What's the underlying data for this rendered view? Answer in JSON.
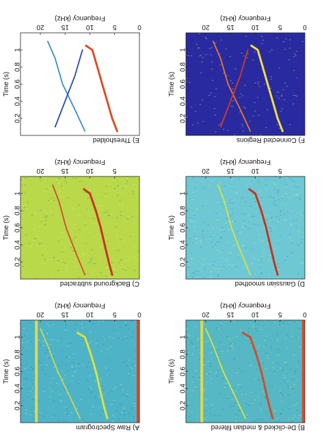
{
  "figure": {
    "orientation_note_visible": "",
    "panels_label": ""
  },
  "chart_data": [
    {
      "type": "heatmap",
      "panel_label": "A) Raw Spectrogram",
      "xlabel": "Time (s)",
      "ylabel": "Frequency (kHz)",
      "x_ticks": [
        "0.2",
        "0.4",
        "0.6",
        "0.8",
        "1"
      ],
      "y_ticks": [
        "0",
        "5",
        "10",
        "15",
        "20"
      ],
      "xlim": [
        0,
        1.2
      ],
      "ylim": [
        0,
        24
      ],
      "background_color": "#4fb3c8",
      "contours": [
        {
          "name": "",
          "color": "#d9e33a",
          "x": [
            0.05,
            0.2,
            0.4,
            0.6,
            0.8,
            1.0,
            1.05
          ],
          "y": [
            6.5,
            7.2,
            8.0,
            8.8,
            9.8,
            11.0,
            12.5
          ]
        },
        {
          "name": "",
          "color": "#c8d84a",
          "x": [
            0.05,
            0.3,
            0.6,
            0.9,
            1.1
          ],
          "y": [
            12.0,
            14.0,
            16.5,
            18.5,
            20.0
          ]
        }
      ],
      "bands": [
        {
          "y": 0.3,
          "color": "#d84a2a"
        },
        {
          "y": 20.8,
          "color": "#e6d84a"
        }
      ]
    },
    {
      "type": "heatmap",
      "panel_label": "B) De-clicked & median filtered",
      "xlabel": "Time (s)",
      "ylabel": "Frequency (kHz)",
      "x_ticks": [
        "0.2",
        "0.4",
        "0.6",
        "0.8",
        "1"
      ],
      "y_ticks": [
        "0",
        "5",
        "10",
        "15",
        "20"
      ],
      "xlim": [
        0,
        1.2
      ],
      "ylim": [
        0,
        24
      ],
      "background_color": "#55b8c4",
      "contours": [
        {
          "name": "",
          "color": "#d84a2a",
          "x": [
            0.05,
            0.2,
            0.4,
            0.6,
            0.8,
            1.0,
            1.05
          ],
          "y": [
            6.5,
            7.2,
            8.0,
            8.8,
            9.8,
            11.0,
            12.5
          ]
        },
        {
          "name": "",
          "color": "#d9e33a",
          "x": [
            0.05,
            0.3,
            0.6,
            0.9,
            1.1
          ],
          "y": [
            12.0,
            14.0,
            16.5,
            18.5,
            20.0
          ]
        }
      ],
      "bands": [
        {
          "y": 0.3,
          "color": "#d84a2a"
        },
        {
          "y": 20.8,
          "color": "#e6d84a"
        }
      ]
    },
    {
      "type": "heatmap",
      "panel_label": "C) Background subtracted",
      "xlabel": "Time (s)",
      "ylabel": "Frequency (kHz)",
      "x_ticks": [
        "0.2",
        "0.4",
        "0.6",
        "0.8",
        "1"
      ],
      "y_ticks": [
        "5",
        "10",
        "15",
        "20"
      ],
      "xlim": [
        0,
        1.2
      ],
      "ylim": [
        0,
        24
      ],
      "background_color": "#b9d84a",
      "contours": [
        {
          "name": "",
          "color": "#c8341e",
          "x": [
            0.05,
            0.2,
            0.4,
            0.6,
            0.8,
            1.0,
            1.05
          ],
          "y": [
            5.5,
            6.2,
            7.0,
            7.8,
            8.8,
            10.0,
            11.2
          ]
        },
        {
          "name": "",
          "color": "#d84a2a",
          "x": [
            0.05,
            0.3,
            0.6,
            0.9,
            1.1
          ],
          "y": [
            11.0,
            12.8,
            14.8,
            16.2,
            17.5
          ]
        }
      ],
      "bands": []
    },
    {
      "type": "heatmap",
      "panel_label": "D) Gaussian smoothed",
      "xlabel": "Time (s)",
      "ylabel": "Frequency (kHz)",
      "x_ticks": [
        "0.2",
        "0.4",
        "0.6",
        "0.8",
        "1"
      ],
      "y_ticks": [
        "5",
        "10",
        "15",
        "20"
      ],
      "xlim": [
        0,
        1.2
      ],
      "ylim": [
        0,
        24
      ],
      "background_color": "#6ec8d4",
      "contours": [
        {
          "name": "",
          "color": "#c8341e",
          "x": [
            0.05,
            0.2,
            0.4,
            0.6,
            0.8,
            1.0,
            1.05
          ],
          "y": [
            5.5,
            6.2,
            7.0,
            7.8,
            8.8,
            10.0,
            11.2
          ]
        },
        {
          "name": "",
          "color": "#d9e33a",
          "x": [
            0.05,
            0.3,
            0.6,
            0.9,
            1.1
          ],
          "y": [
            11.0,
            12.8,
            14.8,
            16.2,
            17.5
          ]
        }
      ],
      "bands": []
    },
    {
      "type": "heatmap",
      "panel_label": "E) Thresholded",
      "xlabel": "Time (s)",
      "ylabel": "Frequency (kHz)",
      "x_ticks": [
        "0.2",
        "0.4",
        "0.6",
        "0.8",
        "1"
      ],
      "y_ticks": [
        "0",
        "5",
        "10",
        "15",
        "20"
      ],
      "xlim": [
        0,
        1.2
      ],
      "ylim": [
        0,
        24
      ],
      "background_color": "#ffffff",
      "contours": [
        {
          "name": "",
          "color": "#d8502a",
          "x": [
            0.05,
            0.2,
            0.4,
            0.6,
            0.8,
            1.0,
            1.05
          ],
          "y": [
            4.5,
            5.5,
            6.5,
            7.5,
            8.5,
            9.5,
            10.8
          ]
        },
        {
          "name": "",
          "color": "#3a8ac8",
          "x": [
            0.05,
            0.3,
            0.6,
            0.9,
            1.1
          ],
          "y": [
            11.0,
            13.0,
            15.5,
            17.0,
            18.5
          ]
        },
        {
          "name": "",
          "color": "#2a4aa8",
          "x": [
            0.1,
            0.4,
            0.7,
            1.0
          ],
          "y": [
            17.0,
            15.0,
            13.0,
            11.5
          ]
        }
      ],
      "bands": []
    },
    {
      "type": "heatmap",
      "panel_label": "F) Connected Regions",
      "xlabel": "Time (s)",
      "ylabel": "Frequency (kHz)",
      "x_ticks": [
        "0.2",
        "0.4",
        "0.6",
        "0.8",
        "1"
      ],
      "y_ticks": [
        "0",
        "5",
        "10",
        "15",
        "20"
      ],
      "xlim": [
        0,
        1.2
      ],
      "ylim": [
        0,
        24
      ],
      "background_color": "#2a2aa0",
      "contours": [
        {
          "name": "",
          "color": "#f0e040",
          "x": [
            0.05,
            0.2,
            0.4,
            0.6,
            0.8,
            1.0,
            1.05
          ],
          "y": [
            4.5,
            5.5,
            6.5,
            7.5,
            8.5,
            9.5,
            10.8
          ]
        },
        {
          "name": "",
          "color": "#e87a2a",
          "x": [
            0.05,
            0.3,
            0.6,
            0.9,
            1.1
          ],
          "y": [
            11.0,
            13.0,
            15.5,
            17.0,
            18.5
          ]
        },
        {
          "name": "",
          "color": "#d83a1e",
          "x": [
            0.1,
            0.4,
            0.7,
            1.0
          ],
          "y": [
            17.0,
            15.0,
            13.0,
            11.5
          ]
        }
      ],
      "bands": []
    }
  ]
}
